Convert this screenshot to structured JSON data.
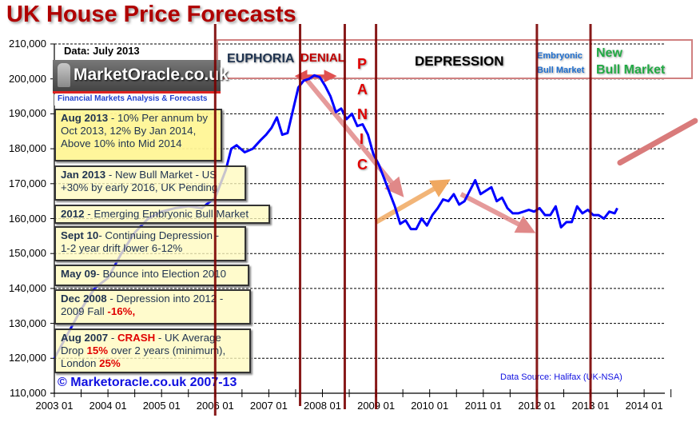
{
  "chart_data": {
    "type": "line",
    "title": "UK House Price Forecasts",
    "subtitle": "Data: July 2013",
    "xlabel": "",
    "ylabel": "",
    "ylim": [
      110000,
      210000
    ],
    "xlim": [
      "2003-01",
      "2014-12"
    ],
    "grid": "horizontal dashed",
    "yticks": [
      "110,000",
      "120,000",
      "130,000",
      "140,000",
      "150,000",
      "160,000",
      "170,000",
      "180,000",
      "190,000",
      "200,000",
      "210,000"
    ],
    "xticks": [
      "2003 01",
      "2004 01",
      "2005 01",
      "2006 01",
      "2007 01",
      "2008 01",
      "2009 01",
      "2010 01",
      "2011 01",
      "2012 01",
      "2013 01",
      "2014 01"
    ],
    "series": [
      {
        "name": "Halifax UK house price (NSA)",
        "color": "#0000ff",
        "x": [
          2003.0,
          2003.25,
          2003.5,
          2003.75,
          2004.0,
          2004.25,
          2004.5,
          2004.75,
          2005.0,
          2005.25,
          2005.5,
          2005.75,
          2006.0,
          2006.1,
          2006.2,
          2006.3,
          2006.4,
          2006.55,
          2006.7,
          2006.85,
          2006.95,
          2007.05,
          2007.15,
          2007.25,
          2007.35,
          2007.45,
          2007.55,
          2007.65,
          2007.75,
          2007.85,
          2007.95,
          2008.05,
          2008.15,
          2008.25,
          2008.35,
          2008.45,
          2008.55,
          2008.65,
          2008.75,
          2008.85,
          2008.95,
          2009.05,
          2009.15,
          2009.25,
          2009.35,
          2009.45,
          2009.55,
          2009.65,
          2009.75,
          2009.85,
          2009.95,
          2010.05,
          2010.15,
          2010.25,
          2010.35,
          2010.45,
          2010.55,
          2010.65,
          2010.75,
          2010.85,
          2010.95,
          2011.05,
          2011.15,
          2011.25,
          2011.35,
          2011.45,
          2011.55,
          2011.65,
          2011.75,
          2011.85,
          2011.95,
          2012.05,
          2012.15,
          2012.25,
          2012.35,
          2012.45,
          2012.55,
          2012.65,
          2012.75,
          2012.85,
          2012.95,
          2013.05,
          2013.15,
          2013.25,
          2013.35,
          2013.45,
          2013.5
        ],
        "values": [
          120000,
          127000,
          134000,
          140000,
          143000,
          150000,
          156000,
          160000,
          162000,
          163000,
          163500,
          163000,
          166000,
          170000,
          174000,
          180000,
          181000,
          179000,
          180000,
          182500,
          184000,
          186000,
          189000,
          184000,
          184500,
          191000,
          197500,
          199500,
          200000,
          201000,
          200500,
          198000,
          195000,
          190500,
          191500,
          188500,
          190000,
          186500,
          187000,
          184000,
          178500,
          175500,
          171500,
          167500,
          163500,
          158500,
          159500,
          157000,
          157000,
          160000,
          158000,
          161000,
          163000,
          165500,
          165000,
          167000,
          164000,
          165000,
          168000,
          171000,
          167000,
          168000,
          169000,
          165000,
          166000,
          163000,
          161500,
          161500,
          162000,
          162500,
          162000,
          163000,
          161000,
          161000,
          163500,
          157500,
          159000,
          159000,
          163500,
          161500,
          162500,
          161000,
          161000,
          160000,
          162000,
          161500,
          163000
        ]
      },
      {
        "name": "Forecast trend",
        "color": "#d97b7b",
        "x": [
          2013.55,
          2014.95
        ],
        "values": [
          176000,
          188000
        ]
      }
    ],
    "phase_dividers": [
      "2006-01",
      "2007-08",
      "2008-06",
      "2009-01",
      "2012-01",
      "2013-01"
    ],
    "phases": [
      "EUPHORIA",
      "DENIAL",
      "PANIC",
      "DEPRESSION",
      "Embryonic Bull Market",
      "New Bull Market"
    ],
    "annotations": {
      "trend_arrows": [
        {
          "from": [
            "2007-09",
            200500
          ],
          "to": [
            "2009-06",
            168000
          ],
          "color": "#e08888"
        },
        {
          "from": [
            "2009-01",
            159000
          ],
          "to": [
            "2010-04",
            170000
          ],
          "color": "#f0a860"
        },
        {
          "from": [
            "2010-08",
            167000
          ],
          "to": [
            "2011-11",
            157000
          ],
          "color": "#e08888"
        }
      ]
    },
    "source": "Data Source: Halifax (UK-NSA)",
    "copyright": "© Marketoracle.co.uk 2007-13"
  },
  "header": {
    "title": "UK House Price Forecasts",
    "data_date": "Data:  July  2013"
  },
  "logo": {
    "name": "MarketOracle.co.uk",
    "tagline": "Financial Markets Analysis & Forecasts"
  },
  "phases": {
    "euphoria": "EUPHORIA",
    "denial": "DENIAL",
    "panic_letters": [
      "P",
      "A",
      "N",
      "I",
      "C"
    ],
    "depression": "DEPRESSION",
    "embryonic": "Embryonic Bull Market",
    "new_bull_line1": "New",
    "new_bull_line2": "Bull Market"
  },
  "notes": [
    {
      "date": "Aug 2013",
      "text1": " - 10% Per annum by",
      "text2": "Oct 2013, 12% By Jan 2014,",
      "text3": "Above 10% into Mid 2014"
    },
    {
      "date": "Jan 2013",
      "text1": " - New Bull Market - US",
      "text2": "+30% by early 2016, UK Pending"
    },
    {
      "date": "2012",
      "text1": " - Emerging Embryonic Bull Market"
    },
    {
      "date": "Sept 10",
      "text1": "-  Continuing Depression  -",
      "text2": "1-2 year drift lower 6-12%"
    },
    {
      "date": "May 09",
      "text1": "-  Bounce into Election 2010"
    },
    {
      "date": "Dec 2008",
      "text1": " - Depression into 2012 -",
      "text2a": "2009 Fall ",
      "text2red": "-16%,"
    },
    {
      "date": "Aug 2007",
      "text1a": " - ",
      "text1red": "CRASH",
      "text1b": " - UK Average",
      "text2a": "Drop ",
      "text2red": "15%",
      "text2b": " over 2 years  (minimum),",
      "text3a": "London ",
      "text3red": "25%"
    }
  ],
  "footer": {
    "copyright": "© Marketoracle.co.uk 2007-13",
    "source": "Data Source:  Halifax (UK-NSA)"
  }
}
